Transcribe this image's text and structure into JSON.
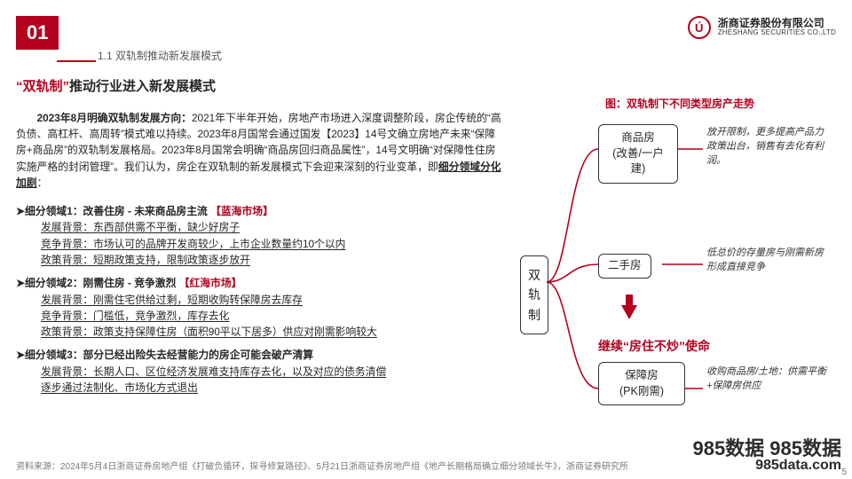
{
  "header": {
    "section_number": "01",
    "breadcrumb": "1.1 双轨制推动新发展模式",
    "broker_cn": "浙商证券股份有限公司",
    "broker_en": "ZHESHANG SECURITIES CO.,LTD",
    "logo_letter": "Ú"
  },
  "title": {
    "accent": "“双轨制”",
    "rest": "推动行业进入新发展模式"
  },
  "lead": {
    "bold": "2023年8月明确双轨制发展方向：",
    "text": "2021年下半年开始，房地产市场进入深度调整阶段，房企传统的“高负债、高杠杆、高周转”模式难以持续。2023年8月国常会通过国发【2023】14号文确立房地产未来“保障房+商品房”的双轨制发展格局。2023年8月国常会明确“商品房回归商品属性”，14号文明确“对保障性住房实施严格的封闭管理”。我们认为，房企在双轨制的新发展模式下会迎来深刻的行业变革，即",
    "tail_u": "细分领域分化加剧",
    "tail_after": "："
  },
  "segments": [
    {
      "heading_pre": "细分领域1：改善住房 - 未来商品房主流 ",
      "heading_red": "【蓝海市场】",
      "lines": [
        {
          "label": "发展背景：",
          "text": "东西部供需不平衡，缺少好房子"
        },
        {
          "label": "竞争背景：",
          "text": "市场认可的品牌开发商较少，上市企业数量约10个以内"
        },
        {
          "label": "政策背景：",
          "text": "短期政策支持，限制政策逐步放开"
        }
      ]
    },
    {
      "heading_pre": "细分领域2：刚需住房 - 竞争激烈 ",
      "heading_red": "【红海市场】",
      "lines": [
        {
          "label": "发展背景：",
          "text": "刚需住宅供给过剩，短期收购转保障房去库存"
        },
        {
          "label": "竞争背景：",
          "text": "门槛低，竞争激烈，库存去化"
        },
        {
          "label": "政策背景：",
          "text": "政策支持保障住房（面积90平以下居多）供应对刚需影响较大"
        }
      ]
    },
    {
      "heading_pre": "细分领域3：部分已经出险",
      "heading_bold_mid": "失去经营能力的房企可能会破产清算",
      "heading_red": "",
      "lines": [
        {
          "label": "发展背景：",
          "text": "长期人口、区位经济发展难支持库存去化，以及对应的债务清偿"
        },
        {
          "label": "",
          "text": "逐步通过法制化、市场化方式退出"
        }
      ]
    }
  ],
  "diagram": {
    "title": "图：双轨制下不同类型房产走势",
    "root": "双轨制",
    "node1_l1": "商品房",
    "node1_l2": "(改善/一户建)",
    "node2": "二手房",
    "node3_l1": "保障房",
    "node3_l2": "(PK刚需)",
    "caption1": "放开限制，更多提高产品力政策出台，销售有去化有利润。",
    "caption2": "低总价的存量房与刚需新房形成直接竞争",
    "caption3": "收购商品房/土地：供需平衡+保障房供应",
    "mission": "继续“房住不炒”使命",
    "colors": {
      "brand": "#b3011e",
      "text": "#262626",
      "border": "#333333"
    }
  },
  "footer": {
    "source": "资料来源：2024年5月4日浙商证券房地产组《打破负循环，探寻修复路径》、5月21日浙商证券房地产组《地产长期格局确立细分领域长牛》，浙商证券研究所",
    "page": "5"
  },
  "watermark": {
    "l1": "985数据 985数据",
    "l2": "985data.com"
  }
}
